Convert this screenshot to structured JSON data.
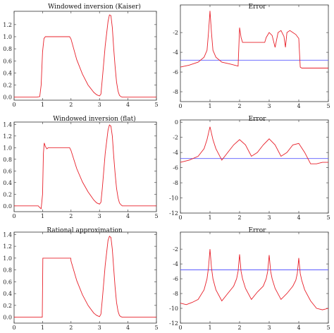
{
  "chart_data": [
    {
      "type": "line",
      "title": "Windowed inversion (Kaiser)",
      "xlim": [
        0,
        5
      ],
      "ylim": [
        -0.05,
        1.42
      ],
      "xticks": [
        0,
        1,
        2,
        3,
        4,
        5
      ],
      "yticks": [
        0.0,
        0.2,
        0.4,
        0.6,
        0.8,
        1.0,
        1.2
      ],
      "ytick_labels": [
        "0.0",
        "0.2",
        "0.4",
        "0.6",
        "0.8",
        "1.0",
        "1.2"
      ],
      "series": [
        {
          "color": "#e8202a",
          "x": [
            0,
            0.8,
            0.9,
            0.95,
            1.0,
            1.05,
            1.1,
            1.2,
            1.5,
            1.95,
            2.0,
            2.2,
            2.4,
            2.6,
            2.8,
            2.9,
            3.0,
            3.05,
            3.1,
            3.2,
            3.3,
            3.35,
            3.4,
            3.45,
            3.5,
            3.55,
            3.6,
            3.65,
            3.7,
            3.75,
            3.8,
            4.0,
            5.0
          ],
          "y": [
            0,
            0,
            0.01,
            0.2,
            0.75,
            0.97,
            1.0,
            1.0,
            1.0,
            1.0,
            0.96,
            0.62,
            0.38,
            0.2,
            0.08,
            0.04,
            0.02,
            0.05,
            0.3,
            0.85,
            1.25,
            1.36,
            1.35,
            1.15,
            0.8,
            0.5,
            0.25,
            0.1,
            0.03,
            0.01,
            0,
            0,
            0
          ]
        }
      ]
    },
    {
      "type": "line",
      "title": "Error",
      "xlim": [
        0,
        5
      ],
      "ylim": [
        -9,
        0.8
      ],
      "xticks": [
        0,
        1,
        2,
        3,
        4,
        5
      ],
      "yticks": [
        -8,
        -6,
        -4,
        -2
      ],
      "ytick_labels": [
        "-8",
        "-6",
        "-4",
        "-2"
      ],
      "reference_line": -4.8,
      "series": [
        {
          "color": "#e8202a",
          "x": [
            0,
            0.3,
            0.6,
            0.8,
            0.9,
            0.95,
            1.0,
            1.05,
            1.1,
            1.2,
            1.4,
            1.7,
            1.95,
            2.0,
            2.05,
            2.1,
            2.5,
            2.85,
            2.9,
            3.0,
            3.1,
            3.2,
            3.3,
            3.4,
            3.5,
            3.55,
            3.6,
            3.7,
            3.8,
            3.9,
            4.0,
            4.05,
            4.1,
            4.5,
            5.0
          ],
          "y": [
            -5.5,
            -5.3,
            -5.0,
            -4.5,
            -3.8,
            -2.0,
            0.2,
            -2.0,
            -3.8,
            -4.5,
            -5.0,
            -5.2,
            -5.4,
            -1.5,
            -2.5,
            -3.0,
            -3.0,
            -3.0,
            -2.5,
            -2.0,
            -2.3,
            -3.5,
            -2.0,
            -1.8,
            -2.4,
            -3.5,
            -2.0,
            -1.8,
            -2.0,
            -2.2,
            -2.6,
            -5.5,
            -5.6,
            -5.6,
            -5.6
          ]
        }
      ]
    },
    {
      "type": "line",
      "title": "Windowed inversion (flat)",
      "xlim": [
        0,
        5
      ],
      "ylim": [
        -0.1,
        1.44
      ],
      "xticks": [
        0,
        1,
        2,
        3,
        4,
        5
      ],
      "yticks": [
        0.0,
        0.2,
        0.4,
        0.6,
        0.8,
        1.0,
        1.2,
        1.4
      ],
      "ytick_labels": [
        "0.0",
        "0.2",
        "0.4",
        "0.6",
        "0.8",
        "1.0",
        "1.2",
        "1.4"
      ],
      "series": [
        {
          "color": "#e8202a",
          "x": [
            0,
            0.85,
            0.9,
            0.95,
            1.0,
            1.03,
            1.06,
            1.1,
            1.15,
            1.2,
            1.3,
            1.5,
            1.95,
            2.0,
            2.2,
            2.4,
            2.6,
            2.8,
            2.9,
            3.0,
            3.05,
            3.1,
            3.2,
            3.3,
            3.35,
            3.4,
            3.45,
            3.5,
            3.55,
            3.6,
            3.65,
            3.7,
            3.75,
            3.8,
            4.0,
            5.0
          ],
          "y": [
            0,
            0,
            -0.03,
            -0.05,
            0.2,
            0.9,
            1.08,
            1.02,
            0.98,
            1.0,
            1.0,
            1.0,
            1.0,
            0.95,
            0.64,
            0.41,
            0.24,
            0.1,
            0.05,
            0.03,
            0.06,
            0.3,
            0.9,
            1.3,
            1.39,
            1.37,
            1.2,
            0.85,
            0.55,
            0.3,
            0.14,
            0.05,
            0.02,
            0,
            0,
            0
          ]
        }
      ]
    },
    {
      "type": "line",
      "title": "Error",
      "xlim": [
        0,
        5
      ],
      "ylim": [
        -12,
        0.3
      ],
      "xticks": [
        0,
        1,
        2,
        3,
        4,
        5
      ],
      "yticks": [
        -12,
        -10,
        -8,
        -6,
        -4,
        -2,
        0
      ],
      "ytick_labels": [
        "-12",
        "-10",
        "-8",
        "-6",
        "-4",
        "-2",
        "0"
      ],
      "reference_line": -4.8,
      "series": [
        {
          "color": "#e8202a",
          "x": [
            0,
            0.3,
            0.6,
            0.8,
            0.9,
            1.0,
            1.1,
            1.2,
            1.4,
            1.6,
            1.8,
            2.0,
            2.2,
            2.4,
            2.6,
            2.8,
            3.0,
            3.2,
            3.4,
            3.6,
            3.8,
            4.0,
            4.2,
            4.4,
            4.6,
            4.8,
            5.0
          ],
          "y": [
            -5.3,
            -5.0,
            -4.5,
            -3.5,
            -2.3,
            -0.6,
            -2.3,
            -3.5,
            -5.0,
            -4.0,
            -3.0,
            -2.3,
            -3.0,
            -4.5,
            -4.0,
            -3.0,
            -2.2,
            -3.0,
            -4.5,
            -4.0,
            -3.0,
            -2.8,
            -4.0,
            -5.5,
            -5.5,
            -5.3,
            -5.3
          ]
        }
      ]
    },
    {
      "type": "line",
      "title": "Rational approximation",
      "xlim": [
        0,
        5
      ],
      "ylim": [
        -0.1,
        1.44
      ],
      "xticks": [
        0,
        1,
        2,
        3,
        4,
        5
      ],
      "yticks": [
        0.0,
        0.2,
        0.4,
        0.6,
        0.8,
        1.0,
        1.2,
        1.4
      ],
      "ytick_labels": [
        "0.0",
        "0.2",
        "0.4",
        "0.6",
        "0.8",
        "1.0",
        "1.2",
        "1.4"
      ],
      "series": [
        {
          "color": "#e8202a",
          "x": [
            0,
            0.99,
            1.0,
            1.01,
            1.5,
            1.99,
            2.0,
            2.2,
            2.4,
            2.6,
            2.8,
            2.9,
            3.0,
            3.05,
            3.1,
            3.2,
            3.3,
            3.35,
            3.4,
            3.45,
            3.5,
            3.55,
            3.6,
            3.65,
            3.7,
            3.75,
            3.8,
            4.0,
            5.0
          ],
          "y": [
            0,
            0,
            0.5,
            1.0,
            1.0,
            1.0,
            0.95,
            0.62,
            0.38,
            0.2,
            0.07,
            0.03,
            0.01,
            0.05,
            0.3,
            0.88,
            1.3,
            1.37,
            1.35,
            1.15,
            0.82,
            0.5,
            0.25,
            0.1,
            0.03,
            0.01,
            0,
            0,
            0
          ]
        }
      ]
    },
    {
      "type": "line",
      "title": "Error",
      "xlim": [
        0,
        5
      ],
      "ylim": [
        -12,
        0.3
      ],
      "xticks": [
        0,
        1,
        2,
        3,
        4,
        5
      ],
      "yticks": [
        -12,
        -10,
        -8,
        -6,
        -4,
        -2
      ],
      "ytick_labels": [
        "-12",
        "-10",
        "-8",
        "-6",
        "-4",
        "-2"
      ],
      "reference_line": -4.8,
      "series": [
        {
          "color": "#e8202a",
          "x": [
            0,
            0.2,
            0.4,
            0.6,
            0.8,
            0.9,
            0.95,
            1.0,
            1.05,
            1.1,
            1.2,
            1.4,
            1.6,
            1.8,
            1.9,
            1.95,
            2.0,
            2.05,
            2.1,
            2.2,
            2.4,
            2.6,
            2.8,
            2.9,
            2.95,
            3.0,
            3.05,
            3.1,
            3.2,
            3.4,
            3.6,
            3.8,
            3.9,
            3.95,
            4.0,
            4.05,
            4.1,
            4.2,
            4.4,
            4.6,
            4.8,
            5.0
          ],
          "y": [
            -9.3,
            -9.5,
            -9.2,
            -8.8,
            -7.5,
            -6.0,
            -4.5,
            -2.0,
            -4.5,
            -6.0,
            -7.5,
            -9.0,
            -8.0,
            -7.0,
            -6.0,
            -5.0,
            -2.7,
            -5.0,
            -6.0,
            -7.3,
            -8.8,
            -7.8,
            -7.0,
            -6.0,
            -5.0,
            -2.8,
            -5.0,
            -6.0,
            -7.3,
            -8.8,
            -8.0,
            -7.0,
            -6.2,
            -5.3,
            -3.2,
            -5.3,
            -6.2,
            -7.5,
            -9.0,
            -10.0,
            -10.2,
            -10.0
          ]
        }
      ]
    }
  ]
}
